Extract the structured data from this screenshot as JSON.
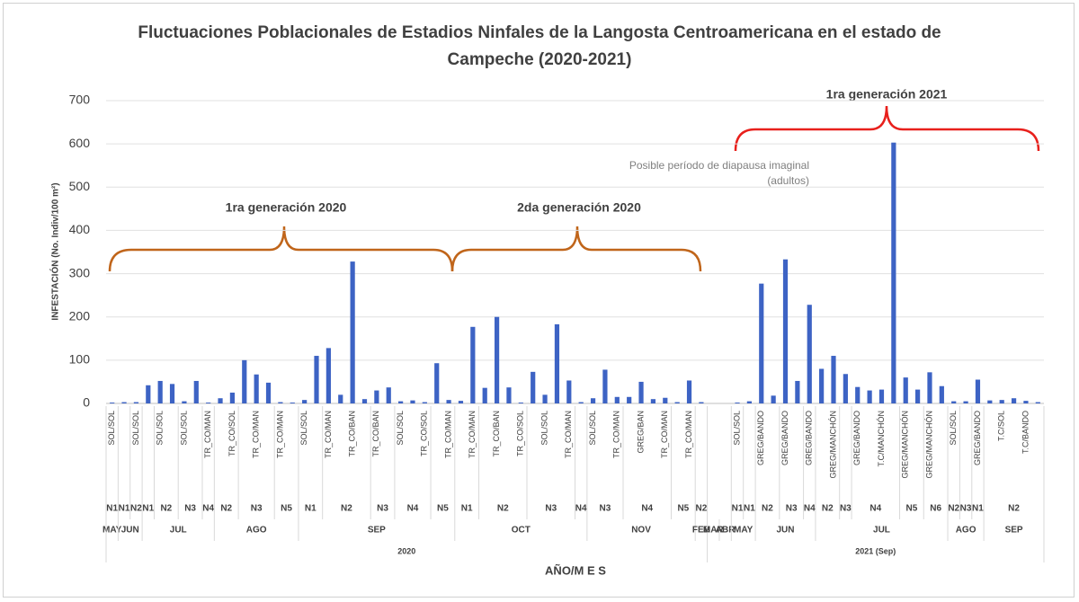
{
  "chart_data": {
    "type": "bar",
    "title": "Fluctuaciones Poblacionales de Estadios Ninfales de la Langosta Centroamericana en el estado de Campeche (2020-2021)",
    "y_label": "INFESTACIÓN  (No. Indiv/100 m²)",
    "x_label": "AÑO/M E S",
    "color": "#3d63c4",
    "grid": true,
    "ylim": [
      0,
      700
    ],
    "yticks": [
      0,
      100,
      200,
      300,
      400,
      500,
      600,
      700
    ],
    "categories": [
      "SOL/SOL",
      null,
      "SOL/SOL",
      null,
      "SOL/SOL",
      null,
      "SOL/SOL",
      null,
      "TR_CO/MAN",
      null,
      "TR_CO/SOL",
      null,
      "TR_CO/MAN",
      null,
      "TR_CO/MAN",
      null,
      "SOL/SOL",
      null,
      "TR_CO/MAN",
      null,
      "TR_CO/BAN",
      null,
      "TR_CO/BAN",
      null,
      "SOL/SOL",
      null,
      "TR_CO/SOL",
      null,
      "TR_CO/MAN",
      null,
      "TR_CO/MAN",
      null,
      "TR_CO/BAN",
      null,
      "TR_CO/SOL",
      null,
      "SOL/SOL",
      null,
      "TR_CO/MAN",
      null,
      "SOL/SOL",
      null,
      "TR_CO/MAN",
      null,
      "GREG/BAN",
      null,
      "TR_CO/MAN",
      null,
      "TR_CO/MAN",
      null,
      null,
      null,
      "SOL/SOL",
      null,
      "GREG/BANDO",
      null,
      "GREG/BANDO",
      null,
      "GREG/BANDO",
      null,
      "GREG/MANCHÓN",
      null,
      "GREG/BANDO",
      null,
      "T.C/MANCHÓN",
      null,
      "GREG/MANCHÓN",
      null,
      "GREG/MANCHÓN",
      null,
      "SOL/SOL",
      null,
      "GREG/BANDO",
      null,
      "T.C/SOL",
      null,
      "T.C/BANDO",
      null
    ],
    "values": [
      2,
      3,
      3,
      42,
      52,
      45,
      5,
      52,
      2,
      12,
      25,
      100,
      67,
      48,
      3,
      2,
      8,
      110,
      128,
      20,
      328,
      10,
      30,
      37,
      5,
      7,
      3,
      93,
      8,
      6,
      177,
      36,
      200,
      37,
      2,
      73,
      20,
      183,
      53,
      3,
      12,
      78,
      15,
      15,
      50,
      10,
      13,
      3,
      53,
      3,
      0,
      0,
      2,
      5,
      277,
      18,
      333,
      52,
      228,
      80,
      110,
      68,
      38,
      30,
      32,
      603,
      60,
      32,
      72,
      40,
      5,
      5,
      55,
      7,
      8,
      12,
      6,
      3
    ],
    "stages": [
      {
        "label": "N1",
        "span": 1
      },
      {
        "label": "N1",
        "span": 1
      },
      {
        "label": "N2",
        "span": 1
      },
      {
        "label": "N1",
        "span": 1
      },
      {
        "label": "N2",
        "span": 2
      },
      {
        "label": "N3",
        "span": 2
      },
      {
        "label": "N4",
        "span": 1
      },
      {
        "label": "N2",
        "span": 2
      },
      {
        "label": "N3",
        "span": 3
      },
      {
        "label": "N5",
        "span": 2
      },
      {
        "label": "N1",
        "span": 2
      },
      {
        "label": "N2",
        "span": 4
      },
      {
        "label": "N3",
        "span": 2
      },
      {
        "label": "N4",
        "span": 3
      },
      {
        "label": "N5",
        "span": 2
      },
      {
        "label": "N1",
        "span": 2
      },
      {
        "label": "N2",
        "span": 4
      },
      {
        "label": "N3",
        "span": 4
      },
      {
        "label": "N4",
        "span": 1
      },
      {
        "label": "N3",
        "span": 3
      },
      {
        "label": "N4",
        "span": 4
      },
      {
        "label": "N5",
        "span": 2
      },
      {
        "label": "N2",
        "span": 1
      },
      {
        "label": null,
        "span": 2
      },
      {
        "label": "N1",
        "span": 1
      },
      {
        "label": "N1",
        "span": 1
      },
      {
        "label": "N2",
        "span": 2
      },
      {
        "label": "N3",
        "span": 2
      },
      {
        "label": "N4",
        "span": 1
      },
      {
        "label": "N2",
        "span": 2
      },
      {
        "label": "N3",
        "span": 1
      },
      {
        "label": "N4",
        "span": 4
      },
      {
        "label": "N5",
        "span": 2
      },
      {
        "label": "N6",
        "span": 2
      },
      {
        "label": "N2",
        "span": 1
      },
      {
        "label": "N3",
        "span": 1
      },
      {
        "label": "N1",
        "span": 1
      },
      {
        "label": "N2",
        "span": 5
      }
    ],
    "months": [
      {
        "label": "MAY",
        "span": 1
      },
      {
        "label": "JUN",
        "span": 2
      },
      {
        "label": "JUL",
        "span": 6
      },
      {
        "label": "AGO",
        "span": 7
      },
      {
        "label": "SEP",
        "span": 13
      },
      {
        "label": "OCT",
        "span": 11
      },
      {
        "label": "NOV",
        "span": 9
      },
      {
        "label": "FEB",
        "span": 1
      },
      {
        "label": "MAR",
        "span": 1
      },
      {
        "label": "ABR",
        "span": 1
      },
      {
        "label": "MAY",
        "span": 2
      },
      {
        "label": "JUN",
        "span": 5
      },
      {
        "label": "JUL",
        "span": 11
      },
      {
        "label": "AGO",
        "span": 3
      },
      {
        "label": "SEP",
        "span": 5
      }
    ],
    "years": [
      {
        "label": "2020",
        "span": 50
      },
      {
        "label": "2021 (Sep)",
        "span": 28
      }
    ],
    "annotations": [
      {
        "text": "1ra generación 2020",
        "color": "#4f7a1c"
      },
      {
        "text": "2da generación 2020",
        "color": "#4f7a1c"
      },
      {
        "text": "Posible período de diapausa imaginal (adultos)",
        "color": "#7f7f7f"
      },
      {
        "text": "1ra generación 2021",
        "color": "#c0392b"
      }
    ]
  }
}
